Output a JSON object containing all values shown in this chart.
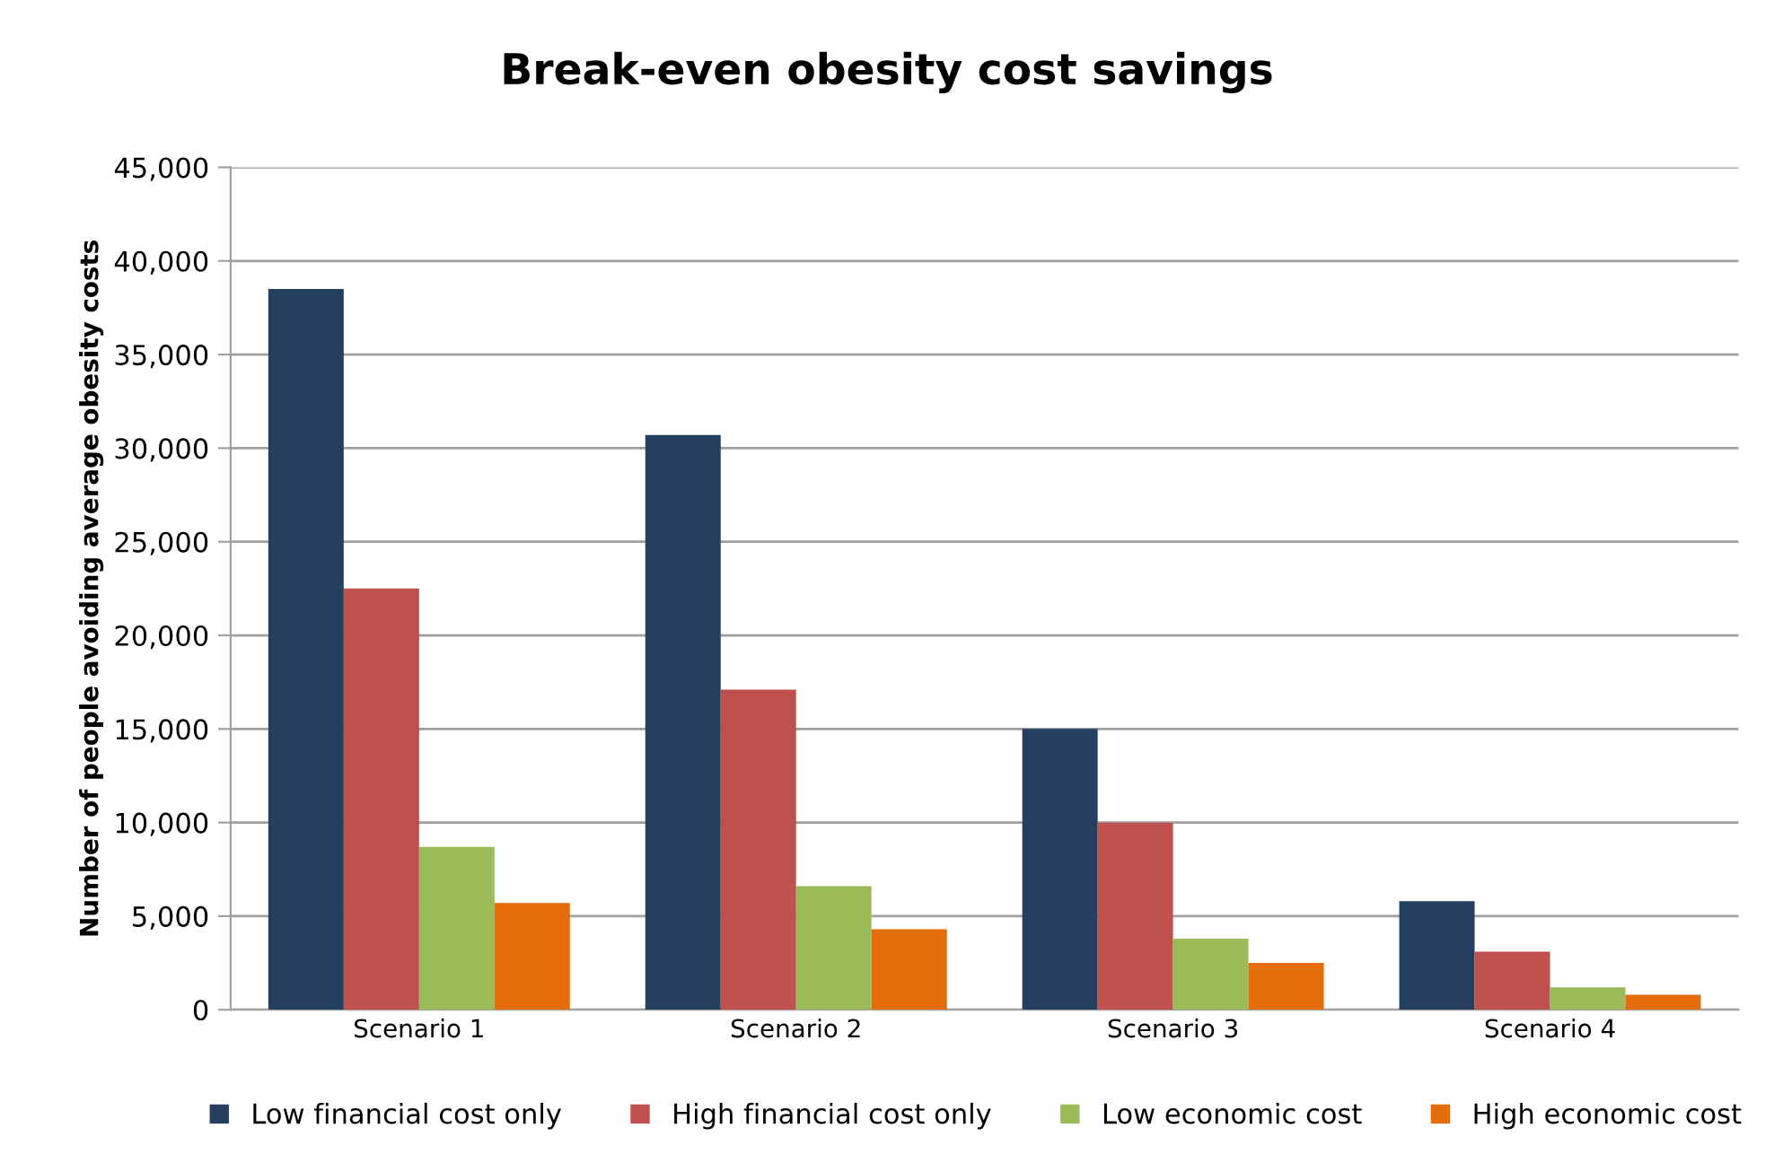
{
  "chart_data": {
    "type": "bar",
    "title": "Break-even obesity cost savings",
    "ylabel": "Number of people avoiding average obesity costs",
    "categories": [
      "Scenario 1",
      "Scenario 2",
      "Scenario 3",
      "Scenario 4"
    ],
    "series": [
      {
        "name": "Low financial cost only",
        "color": "#243f60",
        "values": [
          38500,
          30700,
          15000,
          5800
        ]
      },
      {
        "name": "High financial cost only",
        "color": "#c0504d",
        "values": [
          22500,
          17100,
          10000,
          3100
        ]
      },
      {
        "name": "Low economic cost",
        "color": "#9bbb59",
        "values": [
          8700,
          6600,
          3800,
          1200
        ]
      },
      {
        "name": "High economic cost",
        "color": "#e46c0a",
        "values": [
          5700,
          4300,
          2500,
          800
        ]
      }
    ],
    "ylim": [
      0,
      45000
    ],
    "yticks": [
      {
        "value": 0,
        "label": "0"
      },
      {
        "value": 5000,
        "label": "5,000"
      },
      {
        "value": 10000,
        "label": "10,000"
      },
      {
        "value": 15000,
        "label": "15,000"
      },
      {
        "value": 20000,
        "label": "20,000"
      },
      {
        "value": 25000,
        "label": "25,000"
      },
      {
        "value": 30000,
        "label": "30,000"
      },
      {
        "value": 35000,
        "label": "35,000"
      },
      {
        "value": 40000,
        "label": "40,000"
      },
      {
        "value": 45000,
        "label": "45,000"
      }
    ],
    "grid": "y",
    "legend": "bottom"
  }
}
